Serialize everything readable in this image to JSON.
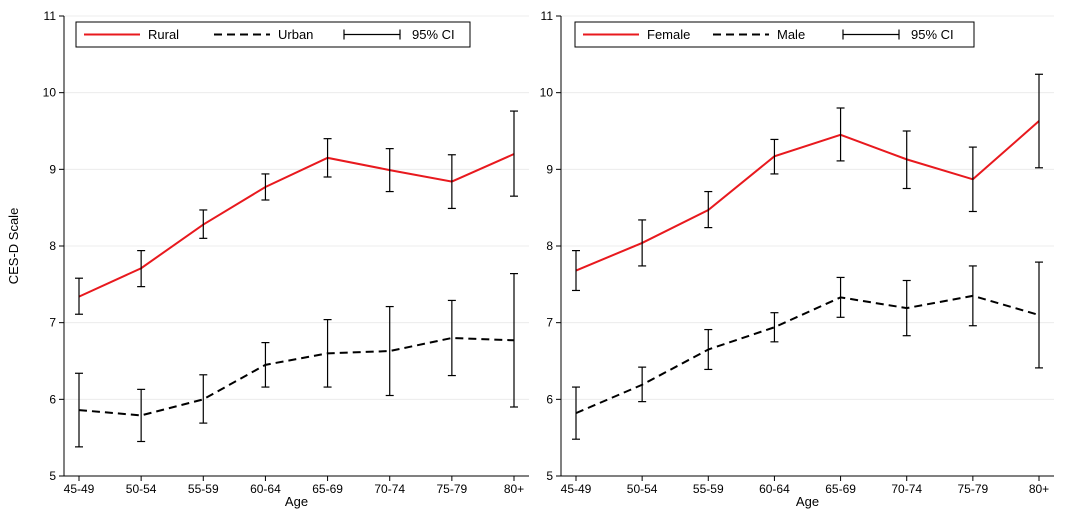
{
  "shared_ylabel": "CES-D Scale",
  "chart_data": [
    {
      "type": "line",
      "xlabel": "Age",
      "ylabel": "CES-D Scale",
      "ylim": [
        5,
        11
      ],
      "yticks": [
        5,
        6,
        7,
        8,
        9,
        10,
        11
      ],
      "grid": true,
      "legend_position": "top",
      "categories": [
        "45-49",
        "50-54",
        "55-59",
        "60-64",
        "65-69",
        "70-74",
        "75-79",
        "80+"
      ],
      "series": [
        {
          "name": "Rural",
          "color": "#e8191e",
          "style": "solid",
          "values": [
            7.34,
            7.71,
            8.28,
            8.77,
            9.15,
            8.99,
            8.84,
            9.2
          ],
          "ci_low": [
            7.11,
            7.47,
            8.1,
            8.6,
            8.9,
            8.71,
            8.49,
            8.65
          ],
          "ci_high": [
            7.58,
            7.94,
            8.47,
            8.94,
            9.4,
            9.27,
            9.19,
            9.76
          ]
        },
        {
          "name": "Urban",
          "color": "#000000",
          "style": "dashed",
          "values": [
            5.86,
            5.79,
            6.0,
            6.45,
            6.6,
            6.63,
            6.8,
            6.77
          ],
          "ci_low": [
            5.38,
            5.45,
            5.69,
            6.16,
            6.16,
            6.05,
            6.31,
            5.9
          ],
          "ci_high": [
            6.34,
            6.13,
            6.32,
            6.74,
            7.04,
            7.21,
            7.29,
            7.64
          ]
        }
      ],
      "ci_label": "95% CI"
    },
    {
      "type": "line",
      "xlabel": "Age",
      "ylabel": "",
      "ylim": [
        5,
        11
      ],
      "yticks": [
        5,
        6,
        7,
        8,
        9,
        10,
        11
      ],
      "grid": true,
      "legend_position": "top",
      "categories": [
        "45-49",
        "50-54",
        "55-59",
        "60-64",
        "65-69",
        "70-74",
        "75-79",
        "80+"
      ],
      "series": [
        {
          "name": "Female",
          "color": "#e8191e",
          "style": "solid",
          "values": [
            7.68,
            8.04,
            8.47,
            9.17,
            9.45,
            9.13,
            8.87,
            9.63
          ],
          "ci_low": [
            7.42,
            7.74,
            8.24,
            8.94,
            9.11,
            8.75,
            8.45,
            9.02
          ],
          "ci_high": [
            7.94,
            8.34,
            8.71,
            9.39,
            9.8,
            9.5,
            9.29,
            10.24
          ]
        },
        {
          "name": "Male",
          "color": "#000000",
          "style": "dashed",
          "values": [
            5.82,
            6.19,
            6.65,
            6.94,
            7.33,
            7.19,
            7.35,
            7.1
          ],
          "ci_low": [
            5.48,
            5.97,
            6.39,
            6.75,
            7.07,
            6.83,
            6.96,
            6.41
          ],
          "ci_high": [
            6.16,
            6.42,
            6.91,
            7.13,
            7.59,
            7.55,
            7.74,
            7.79
          ]
        }
      ],
      "ci_label": "95% CI"
    }
  ]
}
